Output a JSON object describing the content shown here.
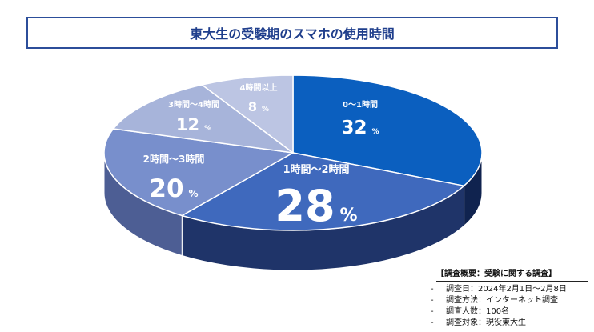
{
  "title": "東大生の受験期のスマホの使用時間",
  "chart_data": {
    "type": "pie",
    "categories": [
      "0～1時間",
      "1時間～2時間",
      "2時間～3時間",
      "3時間～4時間",
      "4時間以上"
    ],
    "values": [
      32,
      28,
      20,
      12,
      8
    ],
    "value_suffix": "%",
    "colors": [
      "#0b5fbf",
      "#3f69bd",
      "#788fcc",
      "#a7b4da",
      "#bcc5e3"
    ],
    "side_colors": [
      "#10234f",
      "#1f3469",
      "#4d5e94",
      "#7a87b4",
      "#8f9ac0"
    ]
  },
  "survey": {
    "heading": "【調査概要：受験に関する調査】",
    "bullet": "-",
    "items": [
      "調査日：2024年2月1日～2月8日",
      "調査方法：インターネット調査",
      "調査人数：100名",
      "調査対象：現役東大生"
    ]
  }
}
